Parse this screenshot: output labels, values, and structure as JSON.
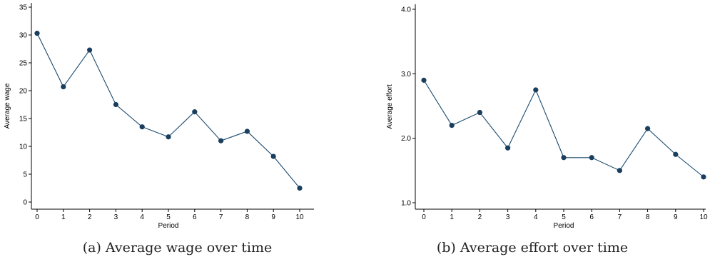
{
  "chart_data": [
    {
      "type": "line",
      "caption": "(a) Average wage over time",
      "xlabel": "Period",
      "ylabel": "Average wage",
      "x": [
        0,
        1,
        2,
        3,
        4,
        5,
        6,
        7,
        8,
        9,
        10
      ],
      "series": [
        {
          "values": [
            30.3,
            20.7,
            27.3,
            17.5,
            13.5,
            11.7,
            16.2,
            11.0,
            12.7,
            8.2,
            2.5
          ]
        }
      ],
      "xticks": [
        "0",
        "1",
        "2",
        "3",
        "4",
        "5",
        "6",
        "7",
        "8",
        "9",
        "10"
      ],
      "yticks": [
        0,
        5,
        10,
        15,
        20,
        25,
        30,
        35
      ],
      "ytick_labels": [
        "0",
        "5",
        "10",
        "15",
        "20",
        "25",
        "30",
        "35"
      ],
      "xlim": [
        0,
        10
      ],
      "ylim": [
        0,
        35
      ],
      "grid": false,
      "color": "#1a4a6e"
    },
    {
      "type": "line",
      "caption": "(b) Average effort over time",
      "xlabel": "Period",
      "ylabel": "Average effort",
      "x": [
        0,
        1,
        2,
        3,
        4,
        5,
        6,
        7,
        8,
        9,
        10
      ],
      "series": [
        {
          "values": [
            2.9,
            2.2,
            2.4,
            1.85,
            2.75,
            1.7,
            1.7,
            1.5,
            2.15,
            1.75,
            1.4
          ]
        }
      ],
      "xticks": [
        "0",
        "1",
        "2",
        "3",
        "4",
        "5",
        "6",
        "7",
        "8",
        "9",
        "10"
      ],
      "yticks": [
        1.0,
        2.0,
        3.0,
        4.0
      ],
      "ytick_labels": [
        "1.0",
        "2.0",
        "3.0",
        "4.0"
      ],
      "xlim": [
        0,
        10
      ],
      "ylim": [
        1.0,
        4.0
      ],
      "grid": false,
      "color": "#1a4a6e"
    }
  ]
}
